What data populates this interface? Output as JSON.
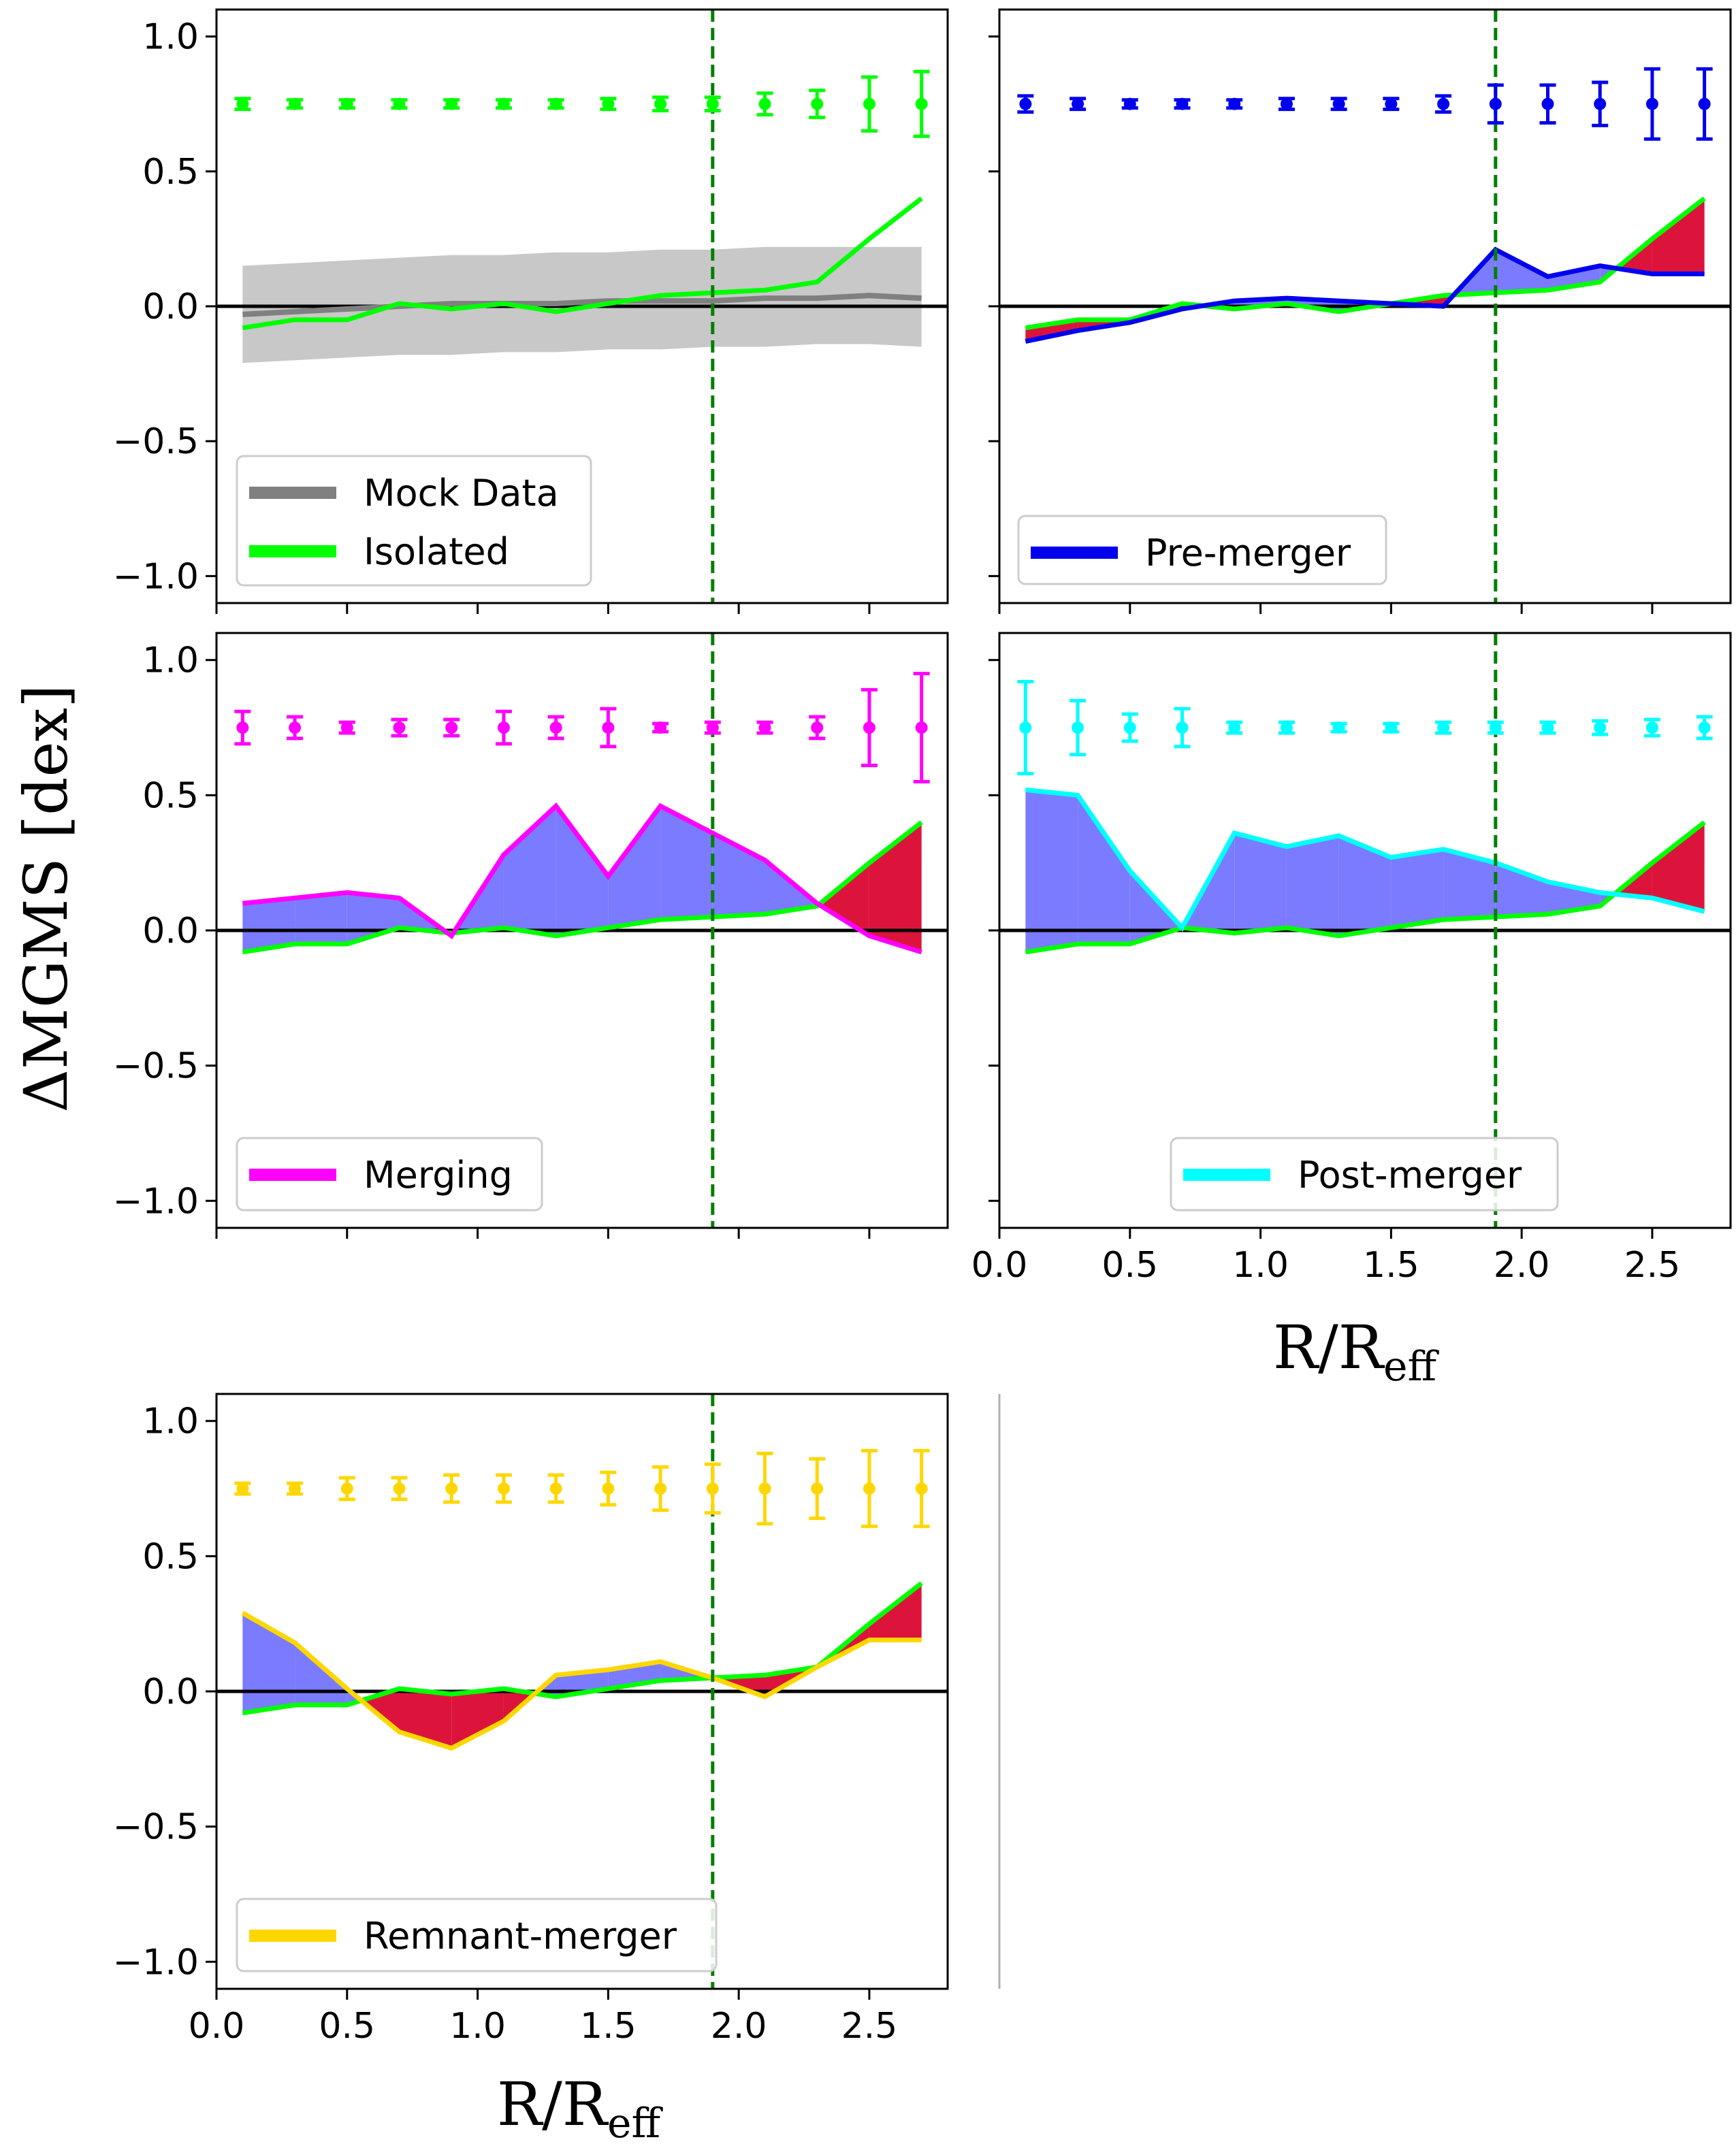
{
  "chart_data": {
    "type": "line",
    "ylabel": {
      "prefix": "Δ",
      "main": "MGMS [dex]"
    },
    "xlabel": {
      "main": "R/R",
      "sub": "eff"
    },
    "xlim": [
      0.0,
      2.8
    ],
    "ylim": [
      -1.1,
      1.1
    ],
    "xticks": [
      "0.0",
      "0.5",
      "1.0",
      "1.5",
      "2.0",
      "2.5"
    ],
    "xtick_values": [
      0.0,
      0.5,
      1.0,
      1.5,
      2.0,
      2.5
    ],
    "yticks": [
      "−1.0",
      "−0.5",
      "0.0",
      "0.5",
      "1.0"
    ],
    "ytick_values": [
      -1.0,
      -0.5,
      0.0,
      0.5,
      1.0
    ],
    "vline_x": 1.9,
    "colors": {
      "isolated": "#00ff00",
      "mock": "#808080",
      "mock_band": "#c8c8c8",
      "fill_above": "#7b7bff",
      "fill_below": "#dc143c",
      "vline": "#008000",
      "zero": "#000000"
    },
    "x": [
      0.1,
      0.3,
      0.5,
      0.7,
      0.9,
      1.1,
      1.3,
      1.5,
      1.7,
      1.9,
      2.1,
      2.3,
      2.5,
      2.7
    ],
    "isolated": [
      -0.08,
      -0.05,
      -0.05,
      0.01,
      -0.01,
      0.01,
      -0.02,
      0.01,
      0.04,
      0.05,
      0.06,
      0.09,
      0.25,
      0.4
    ],
    "mock": {
      "center": [
        -0.03,
        -0.02,
        -0.01,
        0.0,
        0.01,
        0.01,
        0.01,
        0.02,
        0.02,
        0.02,
        0.03,
        0.03,
        0.04,
        0.03
      ],
      "upper": [
        0.15,
        0.16,
        0.17,
        0.18,
        0.19,
        0.19,
        0.2,
        0.2,
        0.21,
        0.21,
        0.22,
        0.22,
        0.22,
        0.22
      ],
      "lower": [
        -0.21,
        -0.2,
        -0.19,
        -0.18,
        -0.18,
        -0.17,
        -0.17,
        -0.16,
        -0.16,
        -0.15,
        -0.15,
        -0.14,
        -0.14,
        -0.15
      ]
    },
    "errorbar_y": 0.75,
    "panels": [
      {
        "id": "isolated",
        "legend": [
          "Mock Data",
          "Isolated"
        ],
        "color": "#00ff00",
        "values": null,
        "errors": [
          0.02,
          0.015,
          0.015,
          0.015,
          0.015,
          0.015,
          0.015,
          0.02,
          0.025,
          0.025,
          0.04,
          0.05,
          0.1,
          0.12
        ]
      },
      {
        "id": "pre-merger",
        "legend": [
          "Pre-merger"
        ],
        "color": "#0000ee",
        "values": [
          -0.13,
          -0.09,
          -0.06,
          -0.01,
          0.02,
          0.03,
          0.02,
          0.01,
          0.0,
          0.21,
          0.11,
          0.15,
          0.12,
          0.12
        ],
        "errors": [
          0.03,
          0.02,
          0.015,
          0.015,
          0.015,
          0.02,
          0.02,
          0.02,
          0.03,
          0.07,
          0.07,
          0.08,
          0.13,
          0.13
        ]
      },
      {
        "id": "merging",
        "legend": [
          "Merging"
        ],
        "color": "#ff00ff",
        "values": [
          0.1,
          0.12,
          0.14,
          0.12,
          -0.02,
          0.28,
          0.46,
          0.2,
          0.46,
          0.36,
          0.26,
          0.1,
          -0.02,
          -0.08
        ],
        "errors": [
          0.06,
          0.04,
          0.02,
          0.03,
          0.03,
          0.06,
          0.04,
          0.07,
          0.015,
          0.02,
          0.02,
          0.04,
          0.14,
          0.2
        ]
      },
      {
        "id": "post-merger",
        "legend": [
          "Post-merger"
        ],
        "color": "#00ffff",
        "values": [
          0.52,
          0.5,
          0.22,
          0.01,
          0.36,
          0.31,
          0.35,
          0.27,
          0.3,
          0.25,
          0.18,
          0.14,
          0.12,
          0.07
        ],
        "errors": [
          0.17,
          0.1,
          0.05,
          0.07,
          0.02,
          0.02,
          0.015,
          0.015,
          0.02,
          0.02,
          0.02,
          0.025,
          0.03,
          0.04
        ]
      },
      {
        "id": "remnant-merger",
        "legend": [
          "Remnant-merger"
        ],
        "color": "#ffd700",
        "values": [
          0.29,
          0.18,
          0.01,
          -0.15,
          -0.21,
          -0.11,
          0.06,
          0.08,
          0.11,
          0.05,
          -0.02,
          0.09,
          0.19,
          0.19
        ],
        "errors": [
          0.02,
          0.02,
          0.04,
          0.04,
          0.05,
          0.05,
          0.05,
          0.06,
          0.08,
          0.09,
          0.13,
          0.11,
          0.14,
          0.14
        ]
      }
    ]
  }
}
